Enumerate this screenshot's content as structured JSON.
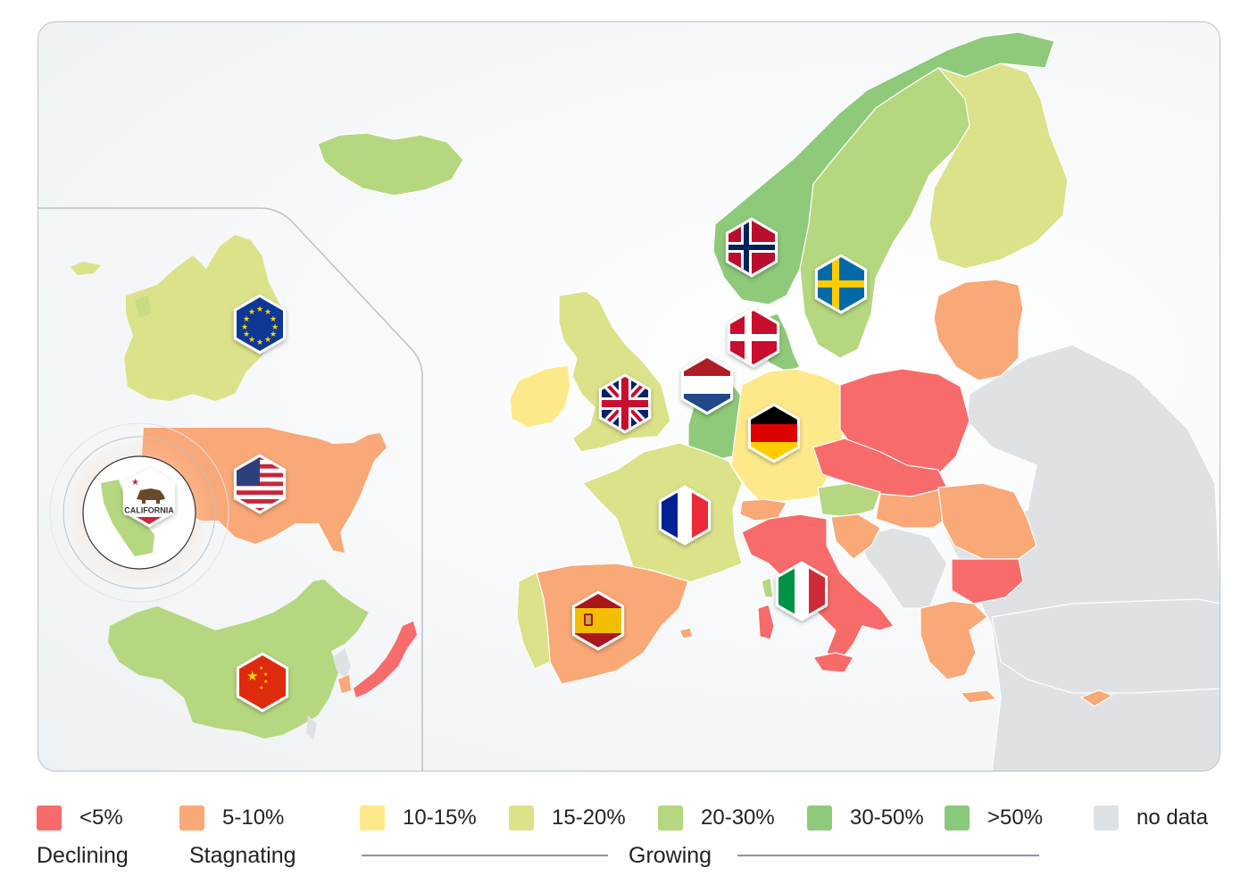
{
  "colors": {
    "declining": "#f76b6b",
    "stagnating": "#f9a877",
    "g10_15": "#fde98a",
    "g15_20": "#dbe28a",
    "g20_30": "#b5d77f",
    "g30_50": "#8fc97a",
    "g50": "#8ac87b",
    "nodata": "#dfe2e4"
  },
  "legend": {
    "items": [
      {
        "label": "<5%",
        "color": "#f76b6b"
      },
      {
        "label": "5-10%",
        "color": "#f9a877"
      },
      {
        "label": "10-15%",
        "color": "#fde98a"
      },
      {
        "label": "15-20%",
        "color": "#dbe28a"
      },
      {
        "label": "20-30%",
        "color": "#b5d77f"
      },
      {
        "label": "30-50%",
        "color": "#8fc97a"
      },
      {
        "label": ">50%",
        "color": "#8ac87b"
      },
      {
        "label": "no data",
        "color": "#dfe2e4"
      }
    ],
    "categories": {
      "declining": "Declining",
      "stagnating": "Stagnating",
      "growing": "Growing"
    }
  },
  "badges": {
    "california": "CALIFORNIA"
  },
  "flags": [
    "eu-flag",
    "usa-flag",
    "california-flag",
    "china-flag",
    "norway-flag",
    "sweden-flag",
    "denmark-flag",
    "netherlands-flag",
    "uk-flag",
    "germany-flag",
    "france-flag",
    "spain-flag",
    "italy-flag"
  ]
}
